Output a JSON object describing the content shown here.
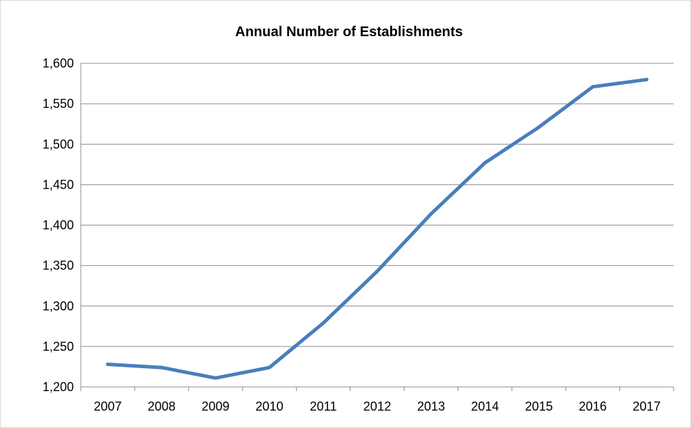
{
  "chart_data": {
    "type": "line",
    "title": "Annual Number of Establishments",
    "xlabel": "",
    "ylabel": "",
    "categories": [
      "2007",
      "2008",
      "2009",
      "2010",
      "2011",
      "2012",
      "2013",
      "2014",
      "2015",
      "2016",
      "2017"
    ],
    "series": [
      {
        "values": [
          1228,
          1224,
          1211,
          1224,
          1279,
          1343,
          1414,
          1477,
          1521,
          1571,
          1580
        ],
        "color": "#4a7ebb"
      }
    ],
    "ylim": [
      1200,
      1600
    ],
    "yticks": [
      1200,
      1250,
      1300,
      1350,
      1400,
      1450,
      1500,
      1550,
      1600
    ],
    "ytick_labels": [
      "1,200",
      "1,250",
      "1,300",
      "1,350",
      "1,400",
      "1,450",
      "1,500",
      "1,550",
      "1,600"
    ],
    "grid": true,
    "legend": "none"
  }
}
